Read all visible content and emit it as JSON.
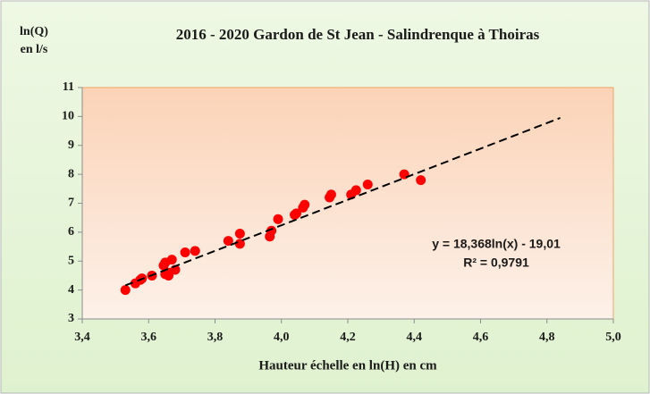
{
  "chart_data": {
    "type": "scatter",
    "title": "2016 - 2020 Gardon de St Jean - Salindrenque à Thoiras",
    "y_label": [
      "ln(Q)",
      "en l/s"
    ],
    "x_label": "Hauteur échelle en ln(H) en cm",
    "annotations": [
      "y = 18,368ln(x) - 19,01",
      "R² = 0,9791"
    ],
    "color": "#ff0000",
    "x": [
      3.53,
      3.56,
      3.575,
      3.58,
      3.61,
      3.645,
      3.65,
      3.66,
      3.65,
      3.66,
      3.67,
      3.68,
      3.71,
      3.74,
      3.84,
      3.875,
      3.875,
      3.965,
      3.97,
      3.99,
      4.045,
      4.04,
      4.07,
      4.065,
      4.15,
      4.145,
      4.21,
      4.225,
      4.26,
      4.37,
      4.42
    ],
    "values": [
      4.0,
      4.23,
      4.35,
      4.4,
      4.5,
      4.85,
      4.95,
      4.6,
      4.55,
      4.5,
      5.05,
      4.7,
      5.3,
      5.35,
      5.7,
      5.95,
      5.6,
      5.85,
      6.05,
      6.45,
      6.65,
      6.6,
      6.95,
      6.85,
      7.3,
      7.2,
      7.3,
      7.45,
      7.65,
      8.0,
      7.8
    ],
    "trendline": {
      "x": [
        3.53,
        4.84
      ],
      "y": [
        4.16,
        9.95
      ]
    },
    "xlim": [
      3.4,
      5.0
    ],
    "xticks": [
      {
        "value": 3.4,
        "label": "3,4"
      },
      {
        "value": 3.6,
        "label": "3,6"
      },
      {
        "value": 3.8,
        "label": "3,8"
      },
      {
        "value": 4.0,
        "label": "4,0"
      },
      {
        "value": 4.2,
        "label": "4,2"
      },
      {
        "value": 4.4,
        "label": "4,4"
      },
      {
        "value": 4.6,
        "label": "4,6"
      },
      {
        "value": 4.8,
        "label": "4,8"
      },
      {
        "value": 5.0,
        "label": "5,0"
      }
    ],
    "ylim": [
      3,
      11
    ],
    "yticks": [
      3,
      4,
      5,
      6,
      7,
      8,
      9,
      10,
      11
    ],
    "grid": false
  }
}
